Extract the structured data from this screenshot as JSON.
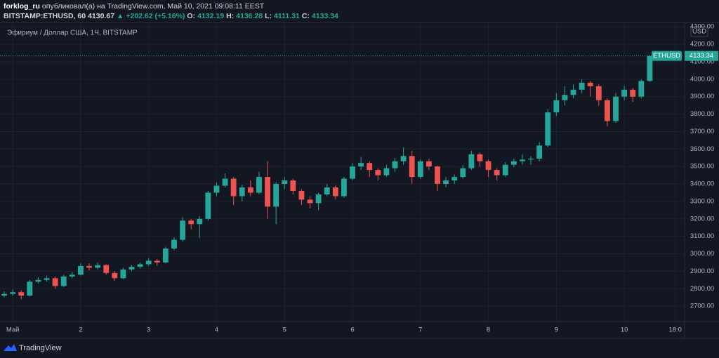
{
  "header": {
    "author": "forklog_ru",
    "published": "опубликовал(а) на TradingView.com, Май 10, 2021 09:08:11 EEST",
    "symbol": "BITSTAMP:ETHUSD, 60",
    "price": "4130.67",
    "change": "▲ +202.62 (+5.16%)",
    "o_label": "O:",
    "o": "4132.19",
    "h_label": "H:",
    "h": "4136.28",
    "l_label": "L:",
    "l": "4111.31",
    "c_label": "C:",
    "c": "4133.34"
  },
  "footer": {
    "brand": "TradingView"
  },
  "chart_data": {
    "type": "candlestick",
    "title": "Эфириум / Доллар США, 1Ч, BITSTAMP",
    "currency": "USD",
    "symbol": "ETHUSD",
    "last_price": 4133.34,
    "up_color": "#26a69a",
    "down_color": "#ef5350",
    "grid": true,
    "x": [
      -3,
      0,
      3,
      6,
      9,
      12,
      15,
      18,
      21,
      24,
      27,
      30,
      33,
      36,
      39,
      42,
      45,
      48,
      51,
      54,
      57,
      60,
      63,
      66,
      69,
      72,
      75,
      78,
      81,
      84,
      87,
      90,
      93,
      96,
      99,
      102,
      105,
      108,
      111,
      114,
      117,
      120,
      123,
      126,
      129,
      132,
      135,
      138,
      141,
      144,
      147,
      150,
      153,
      156,
      159,
      162,
      165,
      168,
      171,
      174,
      177,
      180,
      183,
      186,
      189,
      192,
      195,
      198,
      201,
      204,
      207,
      210,
      213,
      216,
      219,
      222,
      225
    ],
    "open": [
      2760,
      2770,
      2780,
      2760,
      2840,
      2850,
      2860,
      2815,
      2870,
      2880,
      2930,
      2920,
      2935,
      2890,
      2860,
      2910,
      2925,
      2940,
      2960,
      2950,
      3030,
      3080,
      3190,
      3170,
      3200,
      3350,
      3390,
      3430,
      3330,
      3380,
      3350,
      3440,
      3270,
      3400,
      3420,
      3360,
      3310,
      3290,
      3340,
      3380,
      3330,
      3430,
      3500,
      3520,
      3480,
      3450,
      3490,
      3530,
      3560,
      3440,
      3530,
      3500,
      3400,
      3420,
      3440,
      3490,
      3570,
      3530,
      3480,
      3450,
      3510,
      3530,
      3540,
      3545,
      3620,
      3810,
      3880,
      3910,
      3940,
      3980,
      3960,
      3880,
      3760,
      3900,
      3940,
      3900,
      3990
    ],
    "high": [
      2785,
      2795,
      2790,
      2850,
      2865,
      2875,
      2870,
      2880,
      2895,
      2945,
      2945,
      2950,
      2940,
      2900,
      2920,
      2935,
      2950,
      2975,
      2970,
      3040,
      3095,
      3210,
      3200,
      3215,
      3360,
      3410,
      3460,
      3440,
      3395,
      3420,
      3470,
      3530,
      3410,
      3440,
      3430,
      3370,
      3330,
      3350,
      3400,
      3390,
      3440,
      3520,
      3555,
      3530,
      3490,
      3510,
      3550,
      3610,
      3590,
      3540,
      3545,
      3505,
      3440,
      3455,
      3510,
      3590,
      3580,
      3540,
      3490,
      3525,
      3545,
      3570,
      3560,
      3640,
      3830,
      3920,
      3960,
      3970,
      4000,
      3990,
      3970,
      3890,
      3920,
      3960,
      3950,
      4000,
      4136.28
    ],
    "low": [
      2750,
      2760,
      2740,
      2755,
      2830,
      2840,
      2800,
      2810,
      2860,
      2875,
      2905,
      2910,
      2880,
      2845,
      2855,
      2900,
      2915,
      2930,
      2930,
      2945,
      3020,
      3070,
      3140,
      3090,
      3190,
      3330,
      3380,
      3280,
      3300,
      3330,
      3340,
      3200,
      3170,
      3370,
      3340,
      3280,
      3260,
      3250,
      3330,
      3310,
      3320,
      3420,
      3480,
      3440,
      3420,
      3440,
      3470,
      3510,
      3400,
      3430,
      3480,
      3360,
      3380,
      3400,
      3430,
      3480,
      3500,
      3440,
      3420,
      3440,
      3495,
      3510,
      3510,
      3530,
      3610,
      3790,
      3850,
      3890,
      3920,
      3900,
      3850,
      3730,
      3750,
      3880,
      3870,
      3890,
      3985
    ],
    "close": [
      2770,
      2780,
      2760,
      2840,
      2850,
      2860,
      2815,
      2870,
      2880,
      2930,
      2920,
      2935,
      2890,
      2860,
      2910,
      2925,
      2940,
      2960,
      2950,
      3030,
      3080,
      3190,
      3170,
      3200,
      3350,
      3390,
      3430,
      3330,
      3380,
      3350,
      3440,
      3270,
      3400,
      3420,
      3360,
      3310,
      3290,
      3340,
      3380,
      3330,
      3430,
      3500,
      3520,
      3480,
      3450,
      3490,
      3530,
      3560,
      3440,
      3530,
      3500,
      3400,
      3420,
      3440,
      3490,
      3570,
      3530,
      3480,
      3450,
      3510,
      3530,
      3540,
      3545,
      3620,
      3810,
      3880,
      3910,
      3940,
      3980,
      3960,
      3880,
      3760,
      3900,
      3940,
      3900,
      3990,
      4133.34
    ],
    "xlim": [
      -4.5,
      237.3
    ],
    "xticks": [
      {
        "value": 0,
        "label": "Май"
      },
      {
        "value": 24,
        "label": "2"
      },
      {
        "value": 48,
        "label": "3"
      },
      {
        "value": 72,
        "label": "4"
      },
      {
        "value": 96,
        "label": "5"
      },
      {
        "value": 120,
        "label": "6"
      },
      {
        "value": 144,
        "label": "7"
      },
      {
        "value": 168,
        "label": "8"
      },
      {
        "value": 192,
        "label": "9"
      },
      {
        "value": 216,
        "label": "10"
      },
      {
        "value": 234,
        "label": "18:0"
      }
    ],
    "ylim": [
      2612,
      4313
    ],
    "yticks": [
      {
        "value": 2700,
        "label": "2700.00"
      },
      {
        "value": 2800,
        "label": "2800.00"
      },
      {
        "value": 2900,
        "label": "2900.00"
      },
      {
        "value": 3000,
        "label": "3000.00"
      },
      {
        "value": 3100,
        "label": "3100.00"
      },
      {
        "value": 3200,
        "label": "3200.00"
      },
      {
        "value": 3300,
        "label": "3300.00"
      },
      {
        "value": 3400,
        "label": "3400.00"
      },
      {
        "value": 3500,
        "label": "3500.00"
      },
      {
        "value": 3600,
        "label": "3600.00"
      },
      {
        "value": 3700,
        "label": "3700.00"
      },
      {
        "value": 3800,
        "label": "3800.00"
      },
      {
        "value": 3900,
        "label": "3900.00"
      },
      {
        "value": 4000,
        "label": "4000.00"
      },
      {
        "value": 4100,
        "label": "4100.00"
      },
      {
        "value": 4200,
        "label": "4200.00"
      },
      {
        "value": 4300,
        "label": "4300.00"
      }
    ]
  }
}
